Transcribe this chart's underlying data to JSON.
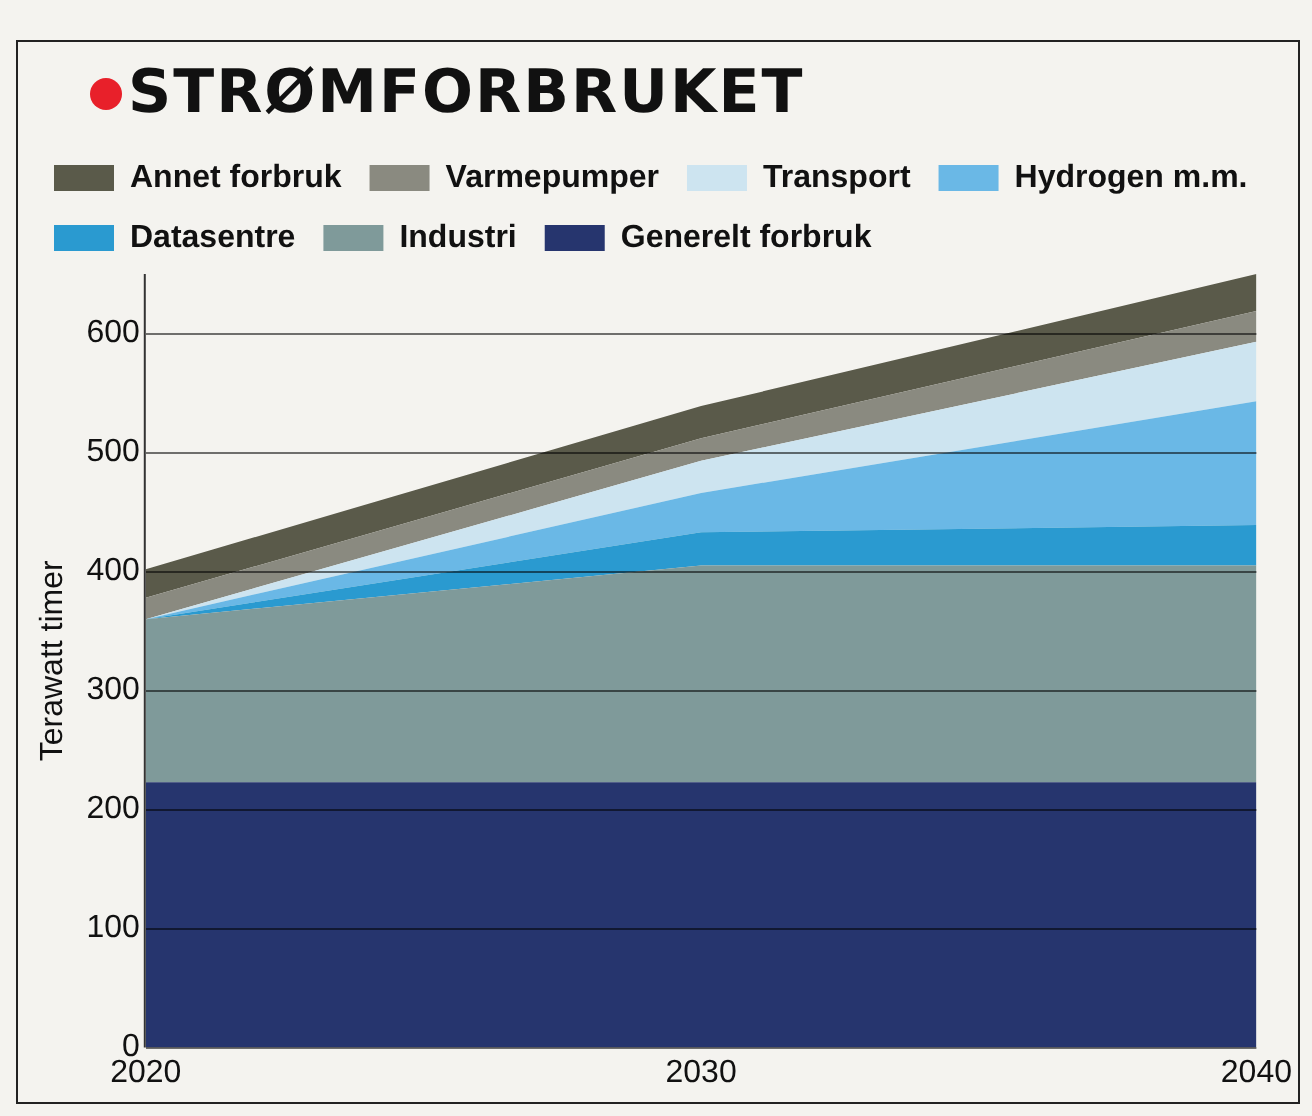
{
  "chart_data": {
    "type": "area",
    "stacked": true,
    "title": "STRØMFORBRUKET",
    "ylabel": "Terawatt timer",
    "x": [
      2020,
      2030,
      2040
    ],
    "xlim": [
      2020,
      2040
    ],
    "xticks": [
      2020,
      2030,
      2040
    ],
    "ylim": [
      0,
      650
    ],
    "yticks": [
      0,
      100,
      200,
      300,
      400,
      500,
      600
    ],
    "grid": "y",
    "legend": "top",
    "series": [
      {
        "name": "Generelt forbruk",
        "color": "#26356e",
        "values": [
          223,
          223,
          223
        ]
      },
      {
        "name": "Industri",
        "color": "#7f9a9a",
        "values": [
          137,
          182,
          182
        ]
      },
      {
        "name": "Datasentre",
        "color": "#2a9ad0",
        "values": [
          0,
          28,
          34
        ]
      },
      {
        "name": "Hydrogen m.m.",
        "color": "#6ab8e6",
        "values": [
          0,
          33,
          104
        ]
      },
      {
        "name": "Transport",
        "color": "#cde4f0",
        "values": [
          0,
          27,
          50
        ]
      },
      {
        "name": "Varmepumper",
        "color": "#8a8a80",
        "values": [
          18,
          19,
          26
        ]
      },
      {
        "name": "Annet forbruk",
        "color": "#5a5a4a",
        "values": [
          24,
          27,
          31
        ]
      }
    ]
  }
}
